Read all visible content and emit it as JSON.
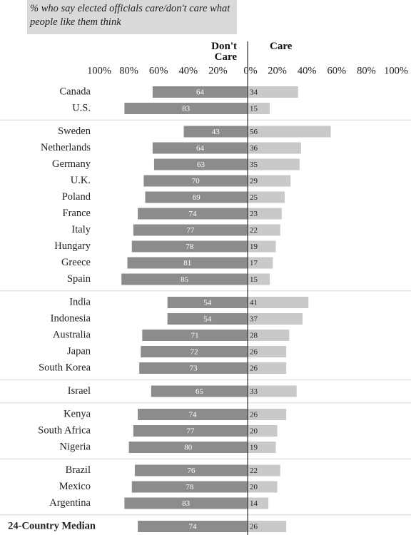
{
  "chart_data": {
    "type": "diverging-bar",
    "title": "% who say elected officials care/don't care what people like them think",
    "categories": [
      "Canada",
      "U.S.",
      "Sweden",
      "Netherlands",
      "Germany",
      "U.K.",
      "Poland",
      "France",
      "Italy",
      "Hungary",
      "Greece",
      "Spain",
      "India",
      "Indonesia",
      "Australia",
      "Japan",
      "South Korea",
      "Israel",
      "Kenya",
      "South Africa",
      "Nigeria",
      "Brazil",
      "Mexico",
      "Argentina",
      "24-Country Median"
    ],
    "group_sizes": [
      2,
      10,
      5,
      1,
      3,
      3,
      1
    ],
    "series": [
      {
        "name": "Don't Care",
        "color": "#8c8c8c",
        "side": "left",
        "values": [
          64,
          83,
          43,
          64,
          63,
          70,
          69,
          74,
          77,
          78,
          81,
          85,
          54,
          54,
          71,
          72,
          73,
          65,
          74,
          77,
          80,
          76,
          78,
          83,
          74
        ]
      },
      {
        "name": "Care",
        "color": "#c9c9c9",
        "side": "right",
        "values": [
          34,
          15,
          56,
          36,
          35,
          29,
          25,
          23,
          22,
          19,
          17,
          15,
          41,
          37,
          28,
          26,
          26,
          33,
          26,
          20,
          19,
          22,
          20,
          14,
          26
        ]
      }
    ],
    "xlim": [
      0,
      100
    ],
    "left_xticks": [
      {
        "value": 100,
        "label": "100%"
      },
      {
        "value": 80,
        "label": "80%"
      },
      {
        "value": 60,
        "label": "60%"
      },
      {
        "value": 40,
        "label": "40%"
      },
      {
        "value": 20,
        "label": "20%"
      },
      {
        "value": 0,
        "label": "0%"
      }
    ],
    "right_xticks": [
      {
        "value": 20,
        "label": "20%"
      },
      {
        "value": 40,
        "label": "40%"
      },
      {
        "value": 60,
        "label": "60%"
      },
      {
        "value": 80,
        "label": "80%"
      },
      {
        "value": 100,
        "label": "100%"
      }
    ]
  }
}
